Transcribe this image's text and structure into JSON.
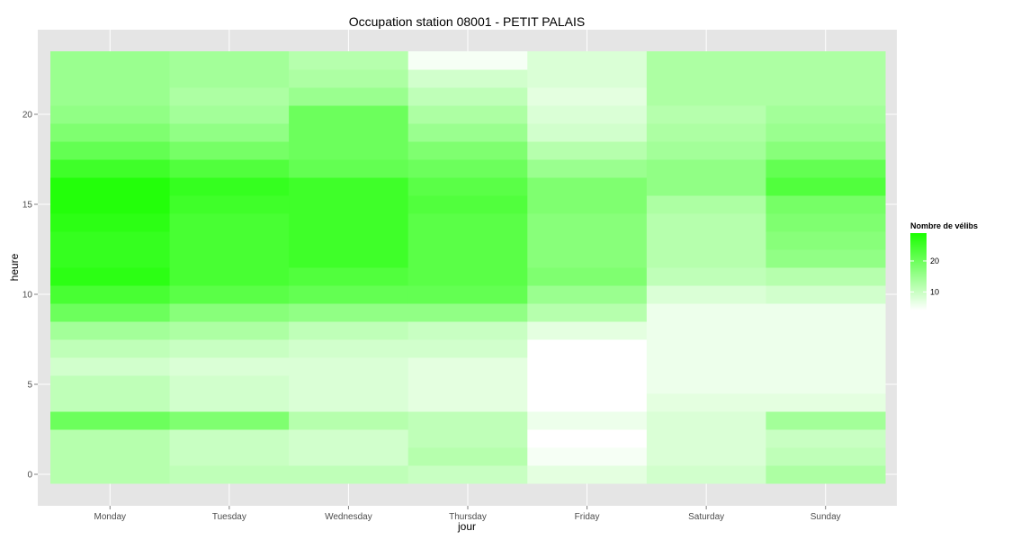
{
  "chart_data": {
    "type": "heatmap",
    "title": "Occupation station 08001 - PETIT PALAIS",
    "xlabel": "jour",
    "ylabel": "heure",
    "x_categories": [
      "Monday",
      "Tuesday",
      "Wednesday",
      "Thursday",
      "Friday",
      "Saturday",
      "Sunday"
    ],
    "y_values": [
      0,
      1,
      2,
      3,
      4,
      5,
      6,
      7,
      8,
      9,
      10,
      11,
      12,
      13,
      14,
      15,
      16,
      17,
      18,
      19,
      20,
      21,
      22,
      23
    ],
    "y_ticks": [
      0,
      5,
      10,
      15,
      20
    ],
    "ylim": [
      -0.5,
      23.5
    ],
    "legend": {
      "title": "Nombre de vélibs",
      "ticks": [
        10,
        20
      ],
      "range": [
        4,
        29
      ],
      "color_low": "#ffffff",
      "color_high": "#1aff00",
      "placement": "right"
    },
    "grid": true,
    "values": [
      [
        12,
        11,
        11,
        10,
        7,
        9,
        13
      ],
      [
        12,
        10,
        9,
        12,
        5,
        8,
        11
      ],
      [
        12,
        10,
        9,
        11,
        4,
        8,
        10
      ],
      [
        20,
        18,
        12,
        11,
        6,
        8,
        14
      ],
      [
        11,
        9,
        8,
        7,
        1,
        7,
        7
      ],
      [
        11,
        9,
        8,
        7,
        1,
        6,
        6
      ],
      [
        9,
        8,
        8,
        7,
        1,
        6,
        6
      ],
      [
        11,
        10,
        9,
        9,
        4,
        6,
        6
      ],
      [
        14,
        13,
        11,
        10,
        7,
        6,
        6
      ],
      [
        20,
        17,
        16,
        16,
        12,
        6,
        6
      ],
      [
        24,
        22,
        21,
        21,
        15,
        8,
        9
      ],
      [
        27,
        24,
        23,
        22,
        18,
        11,
        12
      ],
      [
        26,
        24,
        25,
        22,
        17,
        12,
        16
      ],
      [
        26,
        24,
        25,
        22,
        17,
        12,
        17
      ],
      [
        27,
        24,
        25,
        22,
        17,
        12,
        18
      ],
      [
        28,
        25,
        25,
        23,
        18,
        13,
        19
      ],
      [
        28,
        26,
        25,
        22,
        18,
        16,
        23
      ],
      [
        25,
        23,
        21,
        20,
        15,
        16,
        21
      ],
      [
        21,
        19,
        20,
        18,
        12,
        14,
        17
      ],
      [
        18,
        16,
        20,
        15,
        9,
        13,
        15
      ],
      [
        16,
        14,
        20,
        13,
        8,
        12,
        14
      ],
      [
        15,
        13,
        15,
        11,
        7,
        13,
        13
      ],
      [
        15,
        14,
        13,
        9,
        8,
        13,
        13
      ],
      [
        15,
        14,
        12,
        5,
        8,
        13,
        13
      ]
    ]
  }
}
